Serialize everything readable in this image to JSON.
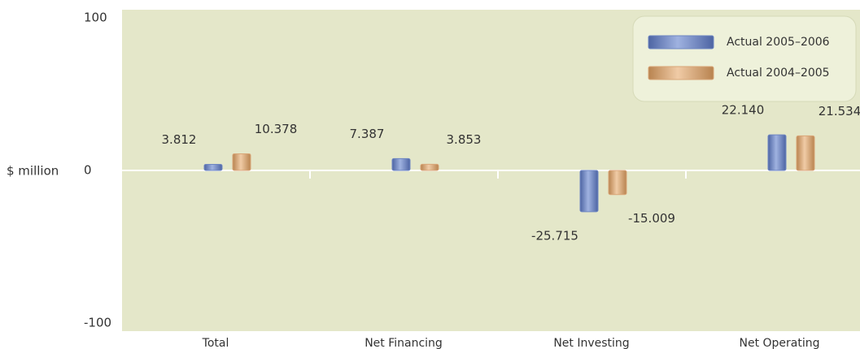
{
  "chart_data": {
    "type": "bar",
    "y_label": "$ million",
    "categories": [
      "Total",
      "Net Financing",
      "Net Investing",
      "Net Operating"
    ],
    "series": [
      {
        "name": "Actual 2005–2006",
        "color": "#6f87c2",
        "values": [
          3.812,
          7.387,
          -25.715,
          22.14
        ],
        "value_labels": [
          "3.812",
          "7.387",
          "-25.715",
          "22.140"
        ]
      },
      {
        "name": "Actual 2004–2005",
        "color": "#d9a678",
        "values": [
          10.378,
          3.853,
          -15.009,
          21.534
        ],
        "value_labels": [
          "10.378",
          "3.853",
          "-15.009",
          "21.534"
        ]
      }
    ],
    "ylim": [
      -100,
      100
    ],
    "yticks": [
      -100,
      0,
      100
    ],
    "legend": "upper right"
  }
}
